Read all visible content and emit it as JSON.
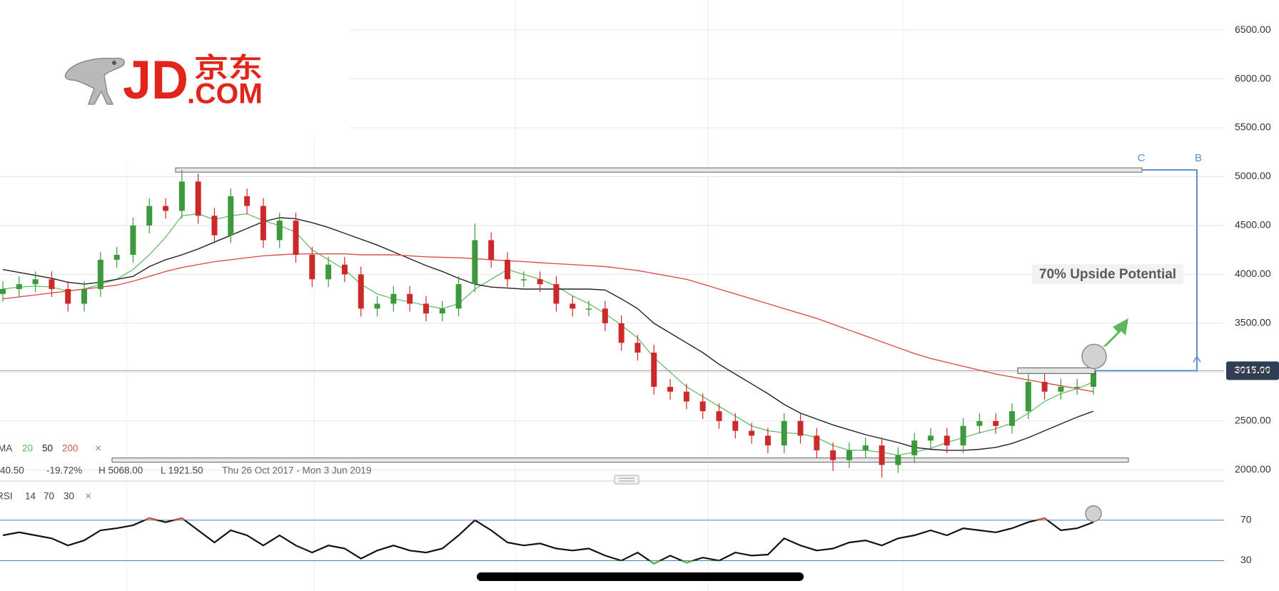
{
  "logo": {
    "brand": "JD",
    "cn": "京东",
    "com": ".COM"
  },
  "chart_data": [
    {
      "type": "candlestick",
      "open": [
        3800,
        3850,
        3900,
        3950,
        3850,
        3700,
        3850,
        4150,
        4200,
        4500,
        4700,
        4650,
        4950,
        4600,
        4400,
        4800,
        4700,
        4350,
        4550,
        4200,
        3950,
        4100,
        4000,
        3650,
        3700,
        3800,
        3700,
        3600,
        3650,
        3900,
        4350,
        4150,
        3950,
        3950,
        3900,
        3700,
        3650,
        3650,
        3500,
        3300,
        3200,
        2850,
        2800,
        2700,
        2600,
        2500,
        2400,
        2350,
        2250,
        2500,
        2350,
        2200,
        2100,
        2200,
        2250,
        2050,
        2150,
        2300,
        2350,
        2250,
        2450,
        2500,
        2450,
        2600,
        2900,
        2800,
        2850,
        2850
      ],
      "high": [
        3930,
        3980,
        4030,
        4030,
        3930,
        3930,
        4230,
        4280,
        4580,
        4780,
        4780,
        5068,
        5030,
        4680,
        4880,
        4880,
        4780,
        4630,
        4630,
        4280,
        4180,
        4180,
        4080,
        3780,
        3880,
        3880,
        3780,
        3730,
        3980,
        4520,
        4430,
        4230,
        4030,
        4030,
        3980,
        3780,
        3730,
        3730,
        3580,
        3380,
        3280,
        2930,
        2880,
        2780,
        2680,
        2580,
        2480,
        2430,
        2580,
        2580,
        2430,
        2280,
        2280,
        2330,
        2330,
        2230,
        2380,
        2430,
        2430,
        2530,
        2580,
        2580,
        2680,
        2980,
        2980,
        2930,
        2930,
        3095
      ],
      "low": [
        3720,
        3770,
        3820,
        3770,
        3620,
        3620,
        3770,
        4070,
        4120,
        4420,
        4570,
        4570,
        4520,
        4320,
        4320,
        4620,
        4270,
        4270,
        4120,
        3870,
        3870,
        3920,
        3570,
        3570,
        3620,
        3620,
        3520,
        3520,
        3570,
        3820,
        4070,
        3870,
        3870,
        3820,
        3620,
        3570,
        3570,
        3420,
        3220,
        3120,
        2770,
        2720,
        2620,
        2520,
        2420,
        2320,
        2270,
        2170,
        2170,
        2270,
        2120,
        1990,
        2020,
        2120,
        1921.5,
        1970,
        2070,
        2220,
        2170,
        2170,
        2370,
        2370,
        2370,
        2520,
        2720,
        2720,
        2770,
        2770
      ],
      "close": [
        3850,
        3900,
        3950,
        3850,
        3700,
        3850,
        4150,
        4200,
        4500,
        4700,
        4650,
        4950,
        4600,
        4400,
        4800,
        4700,
        4350,
        4550,
        4200,
        3950,
        4100,
        4000,
        3650,
        3700,
        3800,
        3700,
        3600,
        3650,
        3900,
        4350,
        4150,
        3950,
        3950,
        3900,
        3700,
        3650,
        3650,
        3500,
        3300,
        3200,
        2850,
        2800,
        2700,
        2600,
        2500,
        2400,
        2350,
        2250,
        2500,
        2350,
        2200,
        2100,
        2200,
        2250,
        2050,
        2150,
        2300,
        2350,
        2250,
        2450,
        2500,
        2450,
        2600,
        2900,
        2800,
        2850,
        2850,
        3015
      ],
      "up_color": "#3c9a3c",
      "down_color": "#cc2a2a",
      "ylim": [
        1900,
        6800
      ],
      "yticks": [
        {
          "value": 2000,
          "label": "2000.00"
        },
        {
          "value": 2500,
          "label": "2500.00"
        },
        {
          "value": 3000,
          "label": "3000.00"
        },
        {
          "value": 3500,
          "label": "3500.00"
        },
        {
          "value": 4000,
          "label": "4000.00"
        },
        {
          "value": 4500,
          "label": "4500.00"
        },
        {
          "value": 5000,
          "label": "5000.00"
        },
        {
          "value": 5500,
          "label": "5500.00"
        },
        {
          "value": 6000,
          "label": "6000.00"
        },
        {
          "value": 6500,
          "label": "6500.00"
        }
      ],
      "grid": true,
      "overlay_label": "MA",
      "close_label": "×",
      "overlays": [
        {
          "name": "20",
          "color": "#5cb85c",
          "values": [
            3850,
            3870,
            3880,
            3870,
            3830,
            3850,
            3900,
            3950,
            4050,
            4200,
            4380,
            4600,
            4620,
            4560,
            4600,
            4620,
            4550,
            4500,
            4430,
            4250,
            4150,
            4050,
            3900,
            3800,
            3750,
            3720,
            3680,
            3650,
            3700,
            3850,
            3950,
            4050,
            4000,
            3950,
            3880,
            3780,
            3700,
            3600,
            3480,
            3350,
            3150,
            3000,
            2850,
            2750,
            2650,
            2550,
            2450,
            2400,
            2380,
            2370,
            2330,
            2250,
            2200,
            2200,
            2180,
            2150,
            2180,
            2220,
            2280,
            2330,
            2380,
            2420,
            2480,
            2580,
            2700,
            2780,
            2830,
            2900
          ]
        },
        {
          "name": "50",
          "color": "#222222",
          "values": [
            4050,
            4020,
            3990,
            3960,
            3920,
            3900,
            3920,
            3950,
            3980,
            4080,
            4150,
            4200,
            4260,
            4330,
            4400,
            4470,
            4540,
            4580,
            4570,
            4530,
            4480,
            4420,
            4360,
            4300,
            4230,
            4160,
            4090,
            4030,
            3960,
            3900,
            3870,
            3860,
            3850,
            3850,
            3850,
            3850,
            3850,
            3840,
            3750,
            3650,
            3500,
            3400,
            3300,
            3200,
            3080,
            2980,
            2880,
            2780,
            2670,
            2580,
            2520,
            2460,
            2410,
            2360,
            2320,
            2280,
            2230,
            2210,
            2200,
            2200,
            2210,
            2230,
            2270,
            2330,
            2400,
            2470,
            2540,
            2600
          ]
        },
        {
          "name": "200",
          "color": "#d9534f",
          "values": [
            3750,
            3770,
            3790,
            3810,
            3830,
            3850,
            3870,
            3890,
            3930,
            3980,
            4030,
            4070,
            4100,
            4130,
            4150,
            4170,
            4190,
            4200,
            4210,
            4210,
            4210,
            4210,
            4200,
            4200,
            4200,
            4190,
            4180,
            4175,
            4170,
            4160,
            4150,
            4140,
            4130,
            4120,
            4110,
            4100,
            4090,
            4080,
            4060,
            4040,
            4010,
            3980,
            3950,
            3900,
            3850,
            3800,
            3750,
            3700,
            3650,
            3600,
            3550,
            3490,
            3430,
            3370,
            3310,
            3250,
            3190,
            3140,
            3100,
            3060,
            3020,
            2980,
            2950,
            2920,
            2890,
            2860,
            2830,
            2800
          ]
        }
      ],
      "change": "40.50",
      "change_pct": "-19.72%",
      "high_label": "H 5068.00",
      "low_label": "L 1921.50",
      "range": "Thu 26 Oct 2017 - Mon 3 Jun 2019",
      "levels": [
        5068,
        2100
      ],
      "last_price": {
        "value": 3015,
        "label": "3015.00"
      },
      "annotations": {
        "upside": "70% Upside Potential",
        "c": "C",
        "b": "B"
      }
    },
    {
      "type": "line",
      "name": "RSI",
      "params": [
        "14",
        "70",
        "30"
      ],
      "close_label": "×",
      "color": "#111111",
      "over_color": "#d9534f",
      "under_color": "#5cb85c",
      "values": [
        55,
        58,
        55,
        52,
        45,
        50,
        60,
        62,
        65,
        72,
        68,
        72,
        60,
        48,
        60,
        55,
        45,
        55,
        45,
        38,
        45,
        42,
        32,
        40,
        45,
        40,
        38,
        42,
        55,
        70,
        60,
        48,
        45,
        47,
        42,
        40,
        42,
        35,
        30,
        38,
        27,
        35,
        28,
        33,
        30,
        38,
        35,
        36,
        52,
        45,
        40,
        42,
        48,
        50,
        45,
        52,
        55,
        60,
        55,
        62,
        60,
        58,
        62,
        68,
        72,
        60,
        62,
        68
      ],
      "ylim": [
        0,
        103
      ],
      "yticks": [
        30,
        70
      ]
    }
  ]
}
